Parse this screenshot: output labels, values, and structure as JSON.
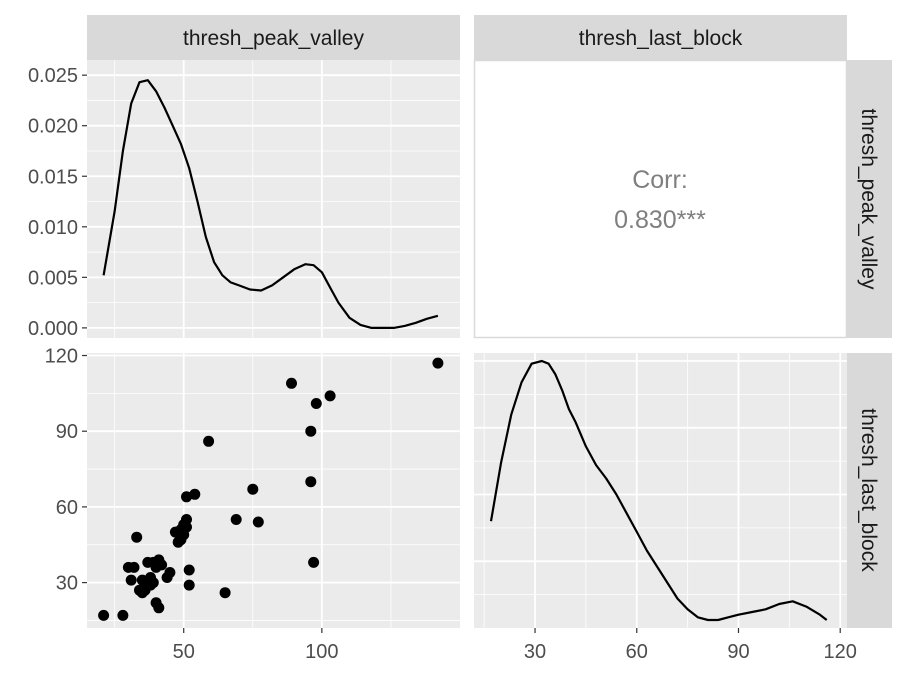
{
  "figure": {
    "columns": [
      "thresh_peak_valley",
      "thresh_last_block"
    ],
    "rows": [
      "thresh_peak_valley",
      "thresh_last_block"
    ]
  },
  "chart_data": [
    {
      "panel": "thresh_peak_valley-density",
      "type": "line",
      "x_ticks": [
        50,
        100
      ],
      "y_ticks": [
        0.0,
        0.005,
        0.01,
        0.015,
        0.02,
        0.025
      ],
      "y_tick_labels": [
        "0.000",
        "0.005",
        "0.010",
        "0.015",
        "0.020",
        "0.025"
      ],
      "xlim": [
        15,
        150
      ],
      "ylim": [
        -0.001,
        0.0265
      ],
      "x": [
        21,
        25,
        28,
        31,
        34,
        37,
        40,
        43,
        46,
        49,
        52,
        55,
        58,
        61,
        64,
        67,
        70,
        74,
        78,
        82,
        86,
        90,
        94,
        97,
        100,
        103,
        106,
        110,
        114,
        118,
        122,
        126,
        130,
        134,
        138,
        142
      ],
      "y": [
        0.0052,
        0.0115,
        0.0175,
        0.0222,
        0.0243,
        0.0245,
        0.0234,
        0.0218,
        0.02,
        0.0182,
        0.0158,
        0.0125,
        0.009,
        0.0065,
        0.0052,
        0.0045,
        0.0042,
        0.0038,
        0.0037,
        0.0042,
        0.005,
        0.0058,
        0.0063,
        0.0062,
        0.0055,
        0.004,
        0.0025,
        0.001,
        0.0003,
        0.0,
        0.0,
        0.0,
        0.0002,
        0.0005,
        0.0009,
        0.0012
      ]
    },
    {
      "panel": "correlation",
      "type": "table",
      "label": "Corr:",
      "value": "0.830***"
    },
    {
      "panel": "scatter",
      "type": "scatter",
      "x_ticks": [
        50,
        100
      ],
      "y_ticks": [
        30,
        60,
        90,
        120
      ],
      "xlim": [
        15,
        150
      ],
      "ylim": [
        12,
        121
      ],
      "x": [
        21,
        28,
        30,
        31,
        32,
        33,
        34,
        35,
        35,
        36,
        37,
        37,
        38,
        38,
        39,
        39,
        40,
        40,
        41,
        41,
        42,
        44,
        45,
        47,
        48,
        49,
        49,
        50,
        50,
        51,
        51,
        51,
        52,
        52,
        54,
        59,
        65,
        69,
        75,
        77,
        89,
        96,
        96,
        97,
        98,
        103,
        142
      ],
      "y": [
        17,
        17,
        36,
        31,
        36,
        48,
        27,
        31,
        26,
        27,
        30,
        38,
        29,
        32,
        30,
        38,
        22,
        36,
        39,
        20,
        37,
        32,
        34,
        50,
        46,
        47,
        51,
        49,
        53,
        55,
        64,
        52,
        35,
        29,
        65,
        86,
        26,
        55,
        67,
        54,
        109,
        70,
        90,
        38,
        101,
        104,
        117
      ]
    },
    {
      "panel": "thresh_last_block-density",
      "type": "line",
      "x_ticks": [
        30,
        60,
        90,
        120
      ],
      "xlim": [
        12,
        122
      ],
      "ylim": [
        0,
        1.03
      ],
      "x": [
        17,
        20,
        23,
        26,
        29,
        32,
        34,
        36,
        38,
        40,
        42,
        45,
        48,
        51,
        54,
        57,
        60,
        63,
        66,
        69,
        72,
        75,
        78,
        81,
        84,
        87,
        90,
        94,
        98,
        102,
        106,
        110,
        114,
        116
      ],
      "y": [
        0.4,
        0.62,
        0.8,
        0.92,
        0.99,
        1.0,
        0.99,
        0.95,
        0.89,
        0.82,
        0.77,
        0.68,
        0.61,
        0.56,
        0.5,
        0.43,
        0.36,
        0.29,
        0.23,
        0.17,
        0.11,
        0.07,
        0.04,
        0.03,
        0.03,
        0.04,
        0.05,
        0.06,
        0.07,
        0.09,
        0.1,
        0.08,
        0.05,
        0.03
      ]
    }
  ]
}
